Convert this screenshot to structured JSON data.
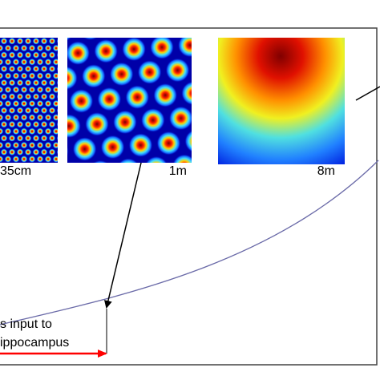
{
  "labels": {
    "scale_1": "35cm",
    "scale_2": "1m",
    "scale_3": "8m"
  },
  "caption": {
    "line_1": "s input to",
    "line_2": "ippocampus"
  }
}
